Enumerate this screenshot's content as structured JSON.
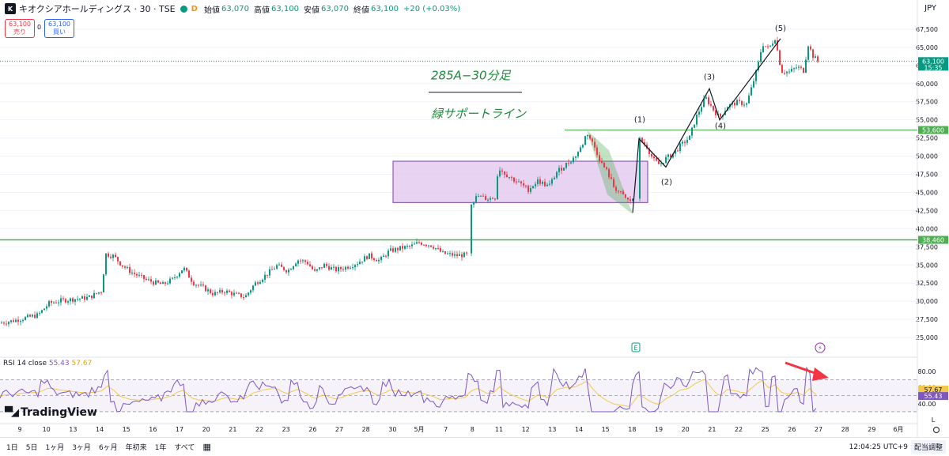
{
  "header": {
    "title": "キオクシアホールディングス · 30 · TSE",
    "badge": "D",
    "open_label": "始値",
    "open": "63,070",
    "high_label": "高値",
    "high": "63,100",
    "low_label": "安値",
    "low": "63,070",
    "close_label": "終値",
    "close": "63,100",
    "change": "+20 (+0.03%)",
    "currency": "JPY"
  },
  "trade": {
    "sell_price": "63,100",
    "sell_label": "売り",
    "spread": "0",
    "buy_price": "63,100",
    "buy_label": "買い"
  },
  "colors": {
    "up": "#089981",
    "down": "#f23645",
    "support": "#4caf50",
    "rsi": "#7e57c2",
    "rsi_ma": "#f2c94c",
    "box": "#e1c4ee"
  },
  "brand": "TradingView",
  "rsi_label": "RSI 14 close",
  "rsi_value": "55.43",
  "rsi_ma_value": "57.67",
  "toolbar": {
    "timeframes": [
      "1日",
      "5日",
      "1ヶ月",
      "3ヶ月",
      "6ヶ月",
      "年初来",
      "1年",
      "すべて"
    ],
    "clock": "12:04:25 UTC+9",
    "adjust": "配当調整"
  },
  "chart_data": {
    "type": "candlestick",
    "title": "285A−30分足",
    "annotation": "緑サポートライン",
    "interval": "30",
    "y_axis": {
      "min": 22500,
      "max": 68800,
      "ticks": [
        "25,000",
        "27,500",
        "30,000",
        "32,500",
        "35,000",
        "37,500",
        "40,000",
        "42,500",
        "45,000",
        "47,500",
        "50,000",
        "52,500",
        "55,000",
        "57,500",
        "60,000",
        "62,500",
        "65,000",
        "67,500"
      ]
    },
    "x_ticks": [
      "9",
      "10",
      "13",
      "14",
      "15",
      "16",
      "17",
      "20",
      "21",
      "22",
      "23",
      "26",
      "27",
      "28",
      "30",
      "5月",
      "7",
      "8",
      "11",
      "12",
      "13",
      "14",
      "15",
      "18",
      "19",
      "20",
      "21",
      "22",
      "25",
      "26",
      "27",
      "28",
      "29",
      "6月"
    ],
    "price_labels": [
      {
        "text": "63,100",
        "sub": "15:35",
        "value": 63100,
        "color": "#089981"
      },
      {
        "text": "53,600",
        "value": 53600,
        "color": "#4caf50"
      },
      {
        "text": "38,460",
        "value": 38460,
        "color": "#4caf50"
      }
    ],
    "support_lines": [
      53600,
      38460
    ],
    "wave_labels": [
      "(1)",
      "(2)",
      "(3)",
      "(4)",
      "(5)"
    ],
    "close_path": [
      [
        0,
        27000
      ],
      [
        16,
        27300
      ],
      [
        32,
        27700
      ],
      [
        48,
        28100
      ],
      [
        62,
        29700
      ],
      [
        78,
        30100
      ],
      [
        94,
        30300
      ],
      [
        112,
        30500
      ],
      [
        128,
        31400
      ],
      [
        134,
        36500
      ],
      [
        144,
        36200
      ],
      [
        154,
        35000
      ],
      [
        166,
        34000
      ],
      [
        180,
        33200
      ],
      [
        194,
        32600
      ],
      [
        206,
        32300
      ],
      [
        218,
        33000
      ],
      [
        232,
        34600
      ],
      [
        244,
        32600
      ],
      [
        258,
        31800
      ],
      [
        270,
        31000
      ],
      [
        284,
        31400
      ],
      [
        298,
        30900
      ],
      [
        310,
        30600
      ],
      [
        322,
        32400
      ],
      [
        336,
        33600
      ],
      [
        350,
        34900
      ],
      [
        364,
        34200
      ],
      [
        376,
        35700
      ],
      [
        388,
        35400
      ],
      [
        398,
        34000
      ],
      [
        410,
        35000
      ],
      [
        424,
        34300
      ],
      [
        438,
        34700
      ],
      [
        452,
        35300
      ],
      [
        466,
        36300
      ],
      [
        480,
        35600
      ],
      [
        492,
        36900
      ],
      [
        506,
        37300
      ],
      [
        520,
        37600
      ],
      [
        530,
        38100
      ],
      [
        546,
        37700
      ],
      [
        560,
        36600
      ],
      [
        576,
        36300
      ],
      [
        590,
        36400
      ],
      [
        596,
        43600
      ],
      [
        604,
        44500
      ],
      [
        616,
        44100
      ],
      [
        626,
        44300
      ],
      [
        630,
        48400
      ],
      [
        642,
        47300
      ],
      [
        656,
        46300
      ],
      [
        668,
        45400
      ],
      [
        680,
        46600
      ],
      [
        694,
        45800
      ],
      [
        704,
        47800
      ],
      [
        714,
        48700
      ],
      [
        726,
        49800
      ],
      [
        736,
        51400
      ],
      [
        742,
        53300
      ],
      [
        752,
        51200
      ],
      [
        760,
        49100
      ],
      [
        768,
        47800
      ],
      [
        776,
        45800
      ],
      [
        786,
        44700
      ],
      [
        796,
        43700
      ],
      [
        800,
        44200
      ],
      [
        808,
        52400
      ],
      [
        818,
        51300
      ],
      [
        826,
        49500
      ],
      [
        834,
        48800
      ],
      [
        842,
        49700
      ],
      [
        852,
        50400
      ],
      [
        860,
        51400
      ],
      [
        872,
        52600
      ],
      [
        880,
        55300
      ],
      [
        892,
        58100
      ],
      [
        902,
        56400
      ],
      [
        910,
        55300
      ],
      [
        920,
        56900
      ],
      [
        932,
        57400
      ],
      [
        944,
        57200
      ],
      [
        950,
        59300
      ],
      [
        958,
        62300
      ],
      [
        964,
        65500
      ],
      [
        972,
        64800
      ],
      [
        980,
        66300
      ],
      [
        988,
        61700
      ],
      [
        998,
        61600
      ],
      [
        1008,
        62300
      ],
      [
        1016,
        61800
      ],
      [
        1022,
        65400
      ],
      [
        1028,
        63800
      ],
      [
        1034,
        63100
      ]
    ],
    "wave_path": [
      [
        800,
        42200
      ],
      [
        808,
        52400
      ],
      [
        842,
        48500
      ],
      [
        897,
        59300
      ],
      [
        910,
        55000
      ],
      [
        987,
        66200
      ]
    ],
    "range_box": {
      "x1": 497,
      "x2": 819,
      "y_top": 49300,
      "y_bottom": 43600
    },
    "rsi": {
      "ylim": [
        27,
        92
      ],
      "levels": [
        70,
        50,
        30
      ],
      "ticks": [
        "40.00",
        "60.00",
        "80.00"
      ],
      "ma": 57.67,
      "value": 55.43
    }
  }
}
